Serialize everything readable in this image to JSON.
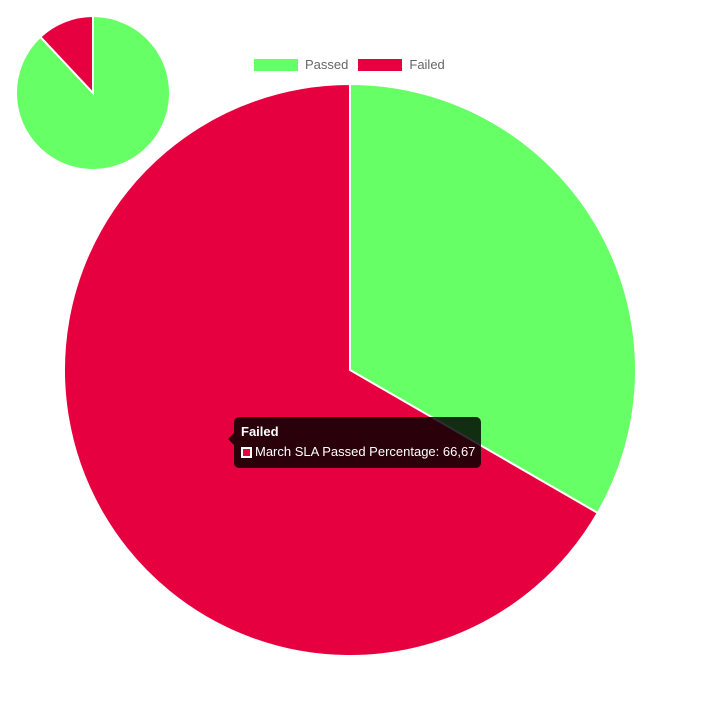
{
  "chart_data": [
    {
      "type": "pie",
      "categories": [
        "Passed",
        "Failed"
      ],
      "values": [
        88,
        12
      ],
      "colors": [
        "#66ff66",
        "#e60040"
      ]
    },
    {
      "type": "pie",
      "categories": [
        "Passed",
        "Failed"
      ],
      "values": [
        33.33,
        66.67
      ],
      "colors": [
        "#66ff66",
        "#e6003f"
      ],
      "legend_position": "top",
      "legend": [
        {
          "label": "Passed",
          "color": "#66ff66"
        },
        {
          "label": "Failed",
          "color": "#e6003f"
        }
      ],
      "tooltip": {
        "title": "Failed",
        "label": "March SLA Passed Percentage: 66,67",
        "color": "#e6003f"
      }
    }
  ]
}
